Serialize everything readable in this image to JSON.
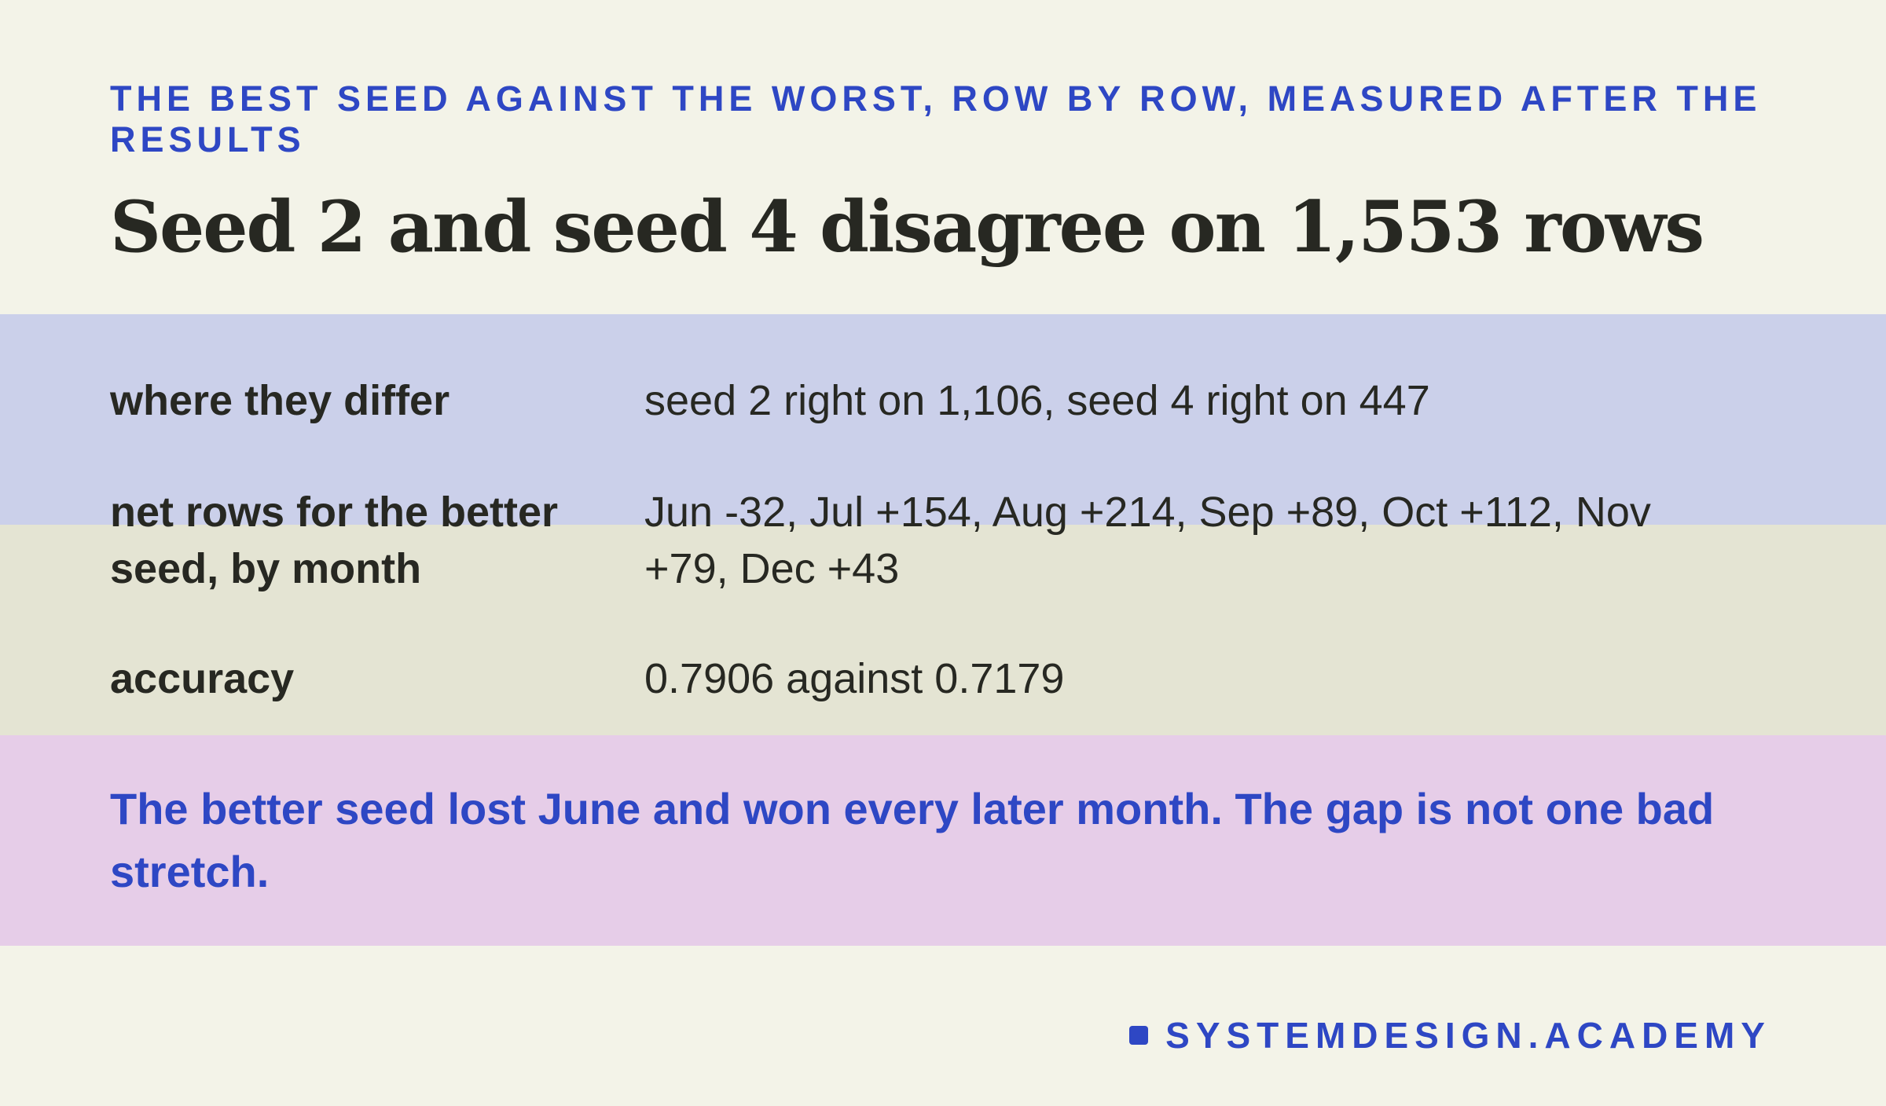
{
  "header": {
    "eyebrow": "The best seed against the worst, row by row, measured after the results",
    "title": "Seed 2 and seed 4 disagree on 1,553 rows"
  },
  "rows": [
    {
      "label": "where they differ",
      "value": "seed 2 right on 1,106, seed 4 right on 447"
    },
    {
      "label": "net rows for the better seed, by month",
      "value": "Jun -32, Jul +154, Aug +214, Sep +89, Oct +112, Nov +79, Dec +43"
    },
    {
      "label": "accuracy",
      "value": "0.7906 against 0.7179"
    }
  ],
  "note": "The better seed lost June and won every later month. The gap is not one bad stretch.",
  "footer": {
    "brand": "SYSTEMDESIGN.ACADEMY"
  },
  "colors": {
    "background": "#f3f3e8",
    "accent": "#2e47c4",
    "text": "#272822",
    "band_blue": "#cbd0ea",
    "band_olive": "#e4e4d3",
    "band_pink": "#e6cde8"
  }
}
